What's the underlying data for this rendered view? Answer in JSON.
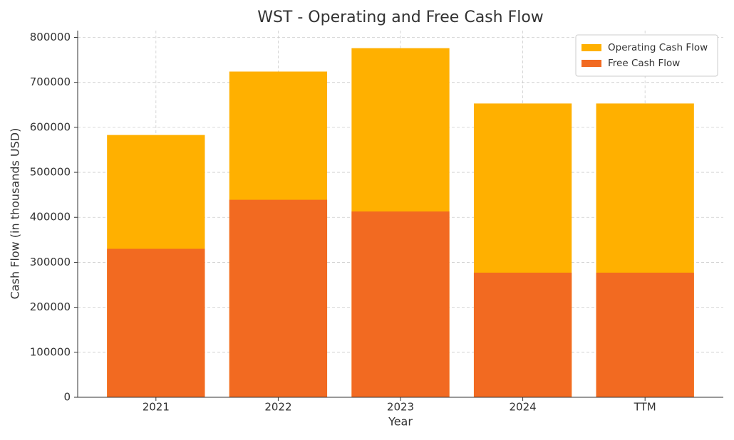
{
  "chart_data": {
    "type": "bar",
    "title": "WST - Operating and Free Cash Flow",
    "x_label": "Year",
    "y_label": "Cash Flow (in thousands USD)",
    "categories": [
      "2021",
      "2022",
      "2023",
      "2024",
      "TTM"
    ],
    "series": [
      {
        "name": "Operating Cash Flow",
        "color": "#ffb000",
        "values": [
          583000,
          724000,
          776000,
          653000,
          653000
        ]
      },
      {
        "name": "Free Cash Flow",
        "color": "#f26a21",
        "values": [
          330000,
          439000,
          413000,
          277000,
          277000
        ]
      }
    ],
    "ylim": [
      0,
      815000
    ],
    "yticks": [
      0,
      100000,
      200000,
      300000,
      400000,
      500000,
      600000,
      700000,
      800000
    ],
    "grid": true,
    "legend": "upper right"
  }
}
